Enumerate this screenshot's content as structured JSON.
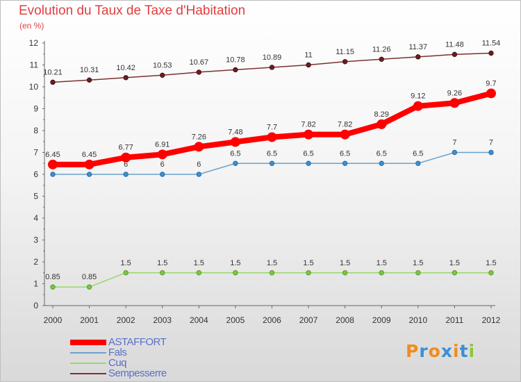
{
  "chart_data": {
    "type": "line",
    "title": "Evolution du Taux de Taxe d'Habitation",
    "subtitle": "(en %)",
    "xlabel": "",
    "ylabel": "",
    "ylim": [
      0,
      12
    ],
    "yticks": [
      "0",
      "1",
      "2",
      "3",
      "4",
      "5",
      "6",
      "7",
      "8",
      "9",
      "10",
      "11",
      "12"
    ],
    "categories": [
      "2000",
      "2001",
      "2002",
      "2003",
      "2004",
      "2005",
      "2006",
      "2007",
      "2008",
      "2009",
      "2010",
      "2011",
      "2012"
    ],
    "series": [
      {
        "name": "ASTAFFORT",
        "color": "#ff0000",
        "values": [
          6.45,
          6.45,
          6.77,
          6.91,
          7.26,
          7.48,
          7.7,
          7.82,
          7.82,
          8.29,
          9.12,
          9.26,
          9.7
        ],
        "labels": [
          "6.45",
          "6.45",
          "6.77",
          "6.91",
          "7.26",
          "7.48",
          "7.7",
          "7.82",
          "7.82",
          "8.29",
          "9.12",
          "9.26",
          "9.7"
        ]
      },
      {
        "name": "Fals",
        "color": "#6aa2cf",
        "values": [
          6,
          6,
          6,
          6,
          6,
          6.5,
          6.5,
          6.5,
          6.5,
          6.5,
          6.5,
          7,
          7
        ],
        "labels": [
          "6",
          "6",
          "6",
          "6",
          "6",
          "6.5",
          "6.5",
          "6.5",
          "6.5",
          "6.5",
          "6.5",
          "7",
          "7"
        ]
      },
      {
        "name": "Cuq",
        "color": "#9ad86a",
        "values": [
          0.85,
          0.85,
          1.5,
          1.5,
          1.5,
          1.5,
          1.5,
          1.5,
          1.5,
          1.5,
          1.5,
          1.5,
          1.5
        ],
        "labels": [
          "0.85",
          "0.85",
          "1.5",
          "1.5",
          "1.5",
          "1.5",
          "1.5",
          "1.5",
          "1.5",
          "1.5",
          "1.5",
          "1.5",
          "1.5"
        ]
      },
      {
        "name": "Sempesserre",
        "color": "#7a3030",
        "values": [
          10.21,
          10.31,
          10.42,
          10.53,
          10.67,
          10.78,
          10.89,
          11,
          11.15,
          11.26,
          11.37,
          11.48,
          11.54
        ],
        "labels": [
          "10.21",
          "10.31",
          "10.42",
          "10.53",
          "10.67",
          "10.78",
          "10.89",
          "11",
          "11.15",
          "11.26",
          "11.37",
          "11.48",
          "11.54"
        ]
      }
    ],
    "grid": false,
    "legend_position": "bottom-left"
  },
  "logo": {
    "text": "Proxiti",
    "letters": [
      "P",
      "r",
      "o",
      "x",
      "i",
      "t",
      "i"
    ],
    "colors": [
      "#f08c1e",
      "#3a8fd6",
      "#f08c1e",
      "#3a8fd6",
      "#f08c1e",
      "#3a8fd6",
      "#8cc63f"
    ]
  }
}
